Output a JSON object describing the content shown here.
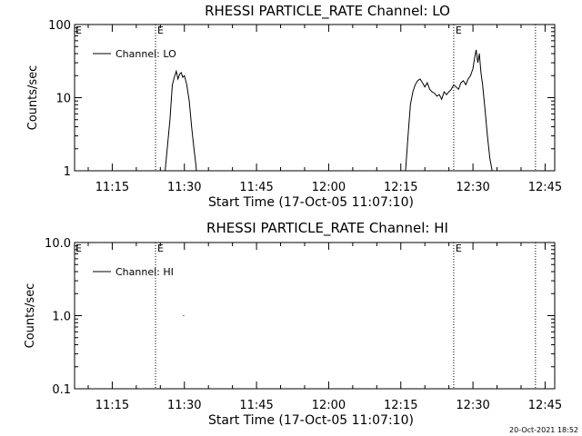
{
  "chart_data": [
    {
      "type": "line",
      "title": "RHESSI PARTICLE_RATE Channel: LO",
      "xlabel": "Start Time (17-Oct-05 11:07:10)",
      "ylabel": "Counts/sec",
      "yscale": "log",
      "xlim": [
        "11:07:10",
        "12:47:00"
      ],
      "ylim": [
        1,
        100
      ],
      "x_ticks": [
        "11:15",
        "11:30",
        "11:45",
        "12:00",
        "12:15",
        "12:30",
        "12:45"
      ],
      "y_ticks": [
        "1",
        "10",
        "100"
      ],
      "grid": false,
      "legend_position": "top-left",
      "event_markers": [
        {
          "time": "11:24:00",
          "label": "E"
        },
        {
          "time": "12:26:00",
          "label": "E"
        },
        {
          "time": "12:43:00",
          "label": ""
        }
      ],
      "start_marker_label": "E",
      "series": [
        {
          "name": "Channel: LO",
          "x": [
            "11:26:00",
            "11:27:00",
            "11:27:30",
            "11:28:00",
            "11:28:20",
            "11:28:40",
            "11:29:00",
            "11:29:20",
            "11:29:40",
            "11:30:00",
            "11:30:30",
            "11:31:00",
            "11:31:30",
            "11:32:00",
            "11:32:20",
            "11:32:30",
            "12:16:00",
            "12:16:30",
            "12:17:00",
            "12:17:30",
            "12:18:00",
            "12:18:30",
            "12:19:00",
            "12:19:30",
            "12:20:00",
            "12:20:30",
            "12:21:00",
            "12:21:30",
            "12:22:00",
            "12:22:30",
            "12:23:00",
            "12:23:30",
            "12:24:00",
            "12:24:30",
            "12:25:00",
            "12:25:30",
            "12:26:00",
            "12:26:30",
            "12:27:00",
            "12:27:30",
            "12:28:00",
            "12:28:30",
            "12:29:00",
            "12:29:30",
            "12:30:00",
            "12:30:20",
            "12:30:40",
            "12:31:00",
            "12:31:20",
            "12:31:40",
            "12:32:00",
            "12:32:30",
            "12:33:00",
            "12:33:30",
            "12:34:00",
            "12:34:30"
          ],
          "values": [
            1,
            5,
            15,
            20,
            23,
            18,
            21,
            22,
            19,
            20,
            15,
            9,
            4,
            2,
            1.3,
            1,
            1,
            3,
            8,
            12,
            15,
            17,
            18,
            16,
            14,
            16,
            13,
            12,
            11.5,
            10.5,
            11,
            9.5,
            12,
            11,
            12,
            13,
            15,
            14,
            13,
            16,
            17,
            15,
            18,
            20,
            25,
            35,
            45,
            30,
            40,
            22,
            15,
            7,
            3,
            1.5,
            1,
            1
          ]
        }
      ]
    },
    {
      "type": "line",
      "title": "RHESSI PARTICLE_RATE Channel: HI",
      "xlabel": "Start Time (17-Oct-05 11:07:10)",
      "ylabel": "Counts/sec",
      "yscale": "log",
      "xlim": [
        "11:07:10",
        "12:47:00"
      ],
      "ylim": [
        0.1,
        10
      ],
      "x_ticks": [
        "11:15",
        "11:30",
        "11:45",
        "12:00",
        "12:15",
        "12:30",
        "12:45"
      ],
      "y_ticks": [
        "0.1",
        "1.0",
        "10.0"
      ],
      "grid": false,
      "legend_position": "top-left",
      "event_markers": [
        {
          "time": "11:24:00",
          "label": "E"
        },
        {
          "time": "12:26:00",
          "label": "E"
        },
        {
          "time": "12:43:00",
          "label": ""
        }
      ],
      "start_marker_label": "E",
      "series": [
        {
          "name": "Channel: HI",
          "x": [
            "11:29:45"
          ],
          "values": [
            1.0
          ]
        }
      ]
    }
  ],
  "timestamp": "20-Oct-2021 18:52"
}
